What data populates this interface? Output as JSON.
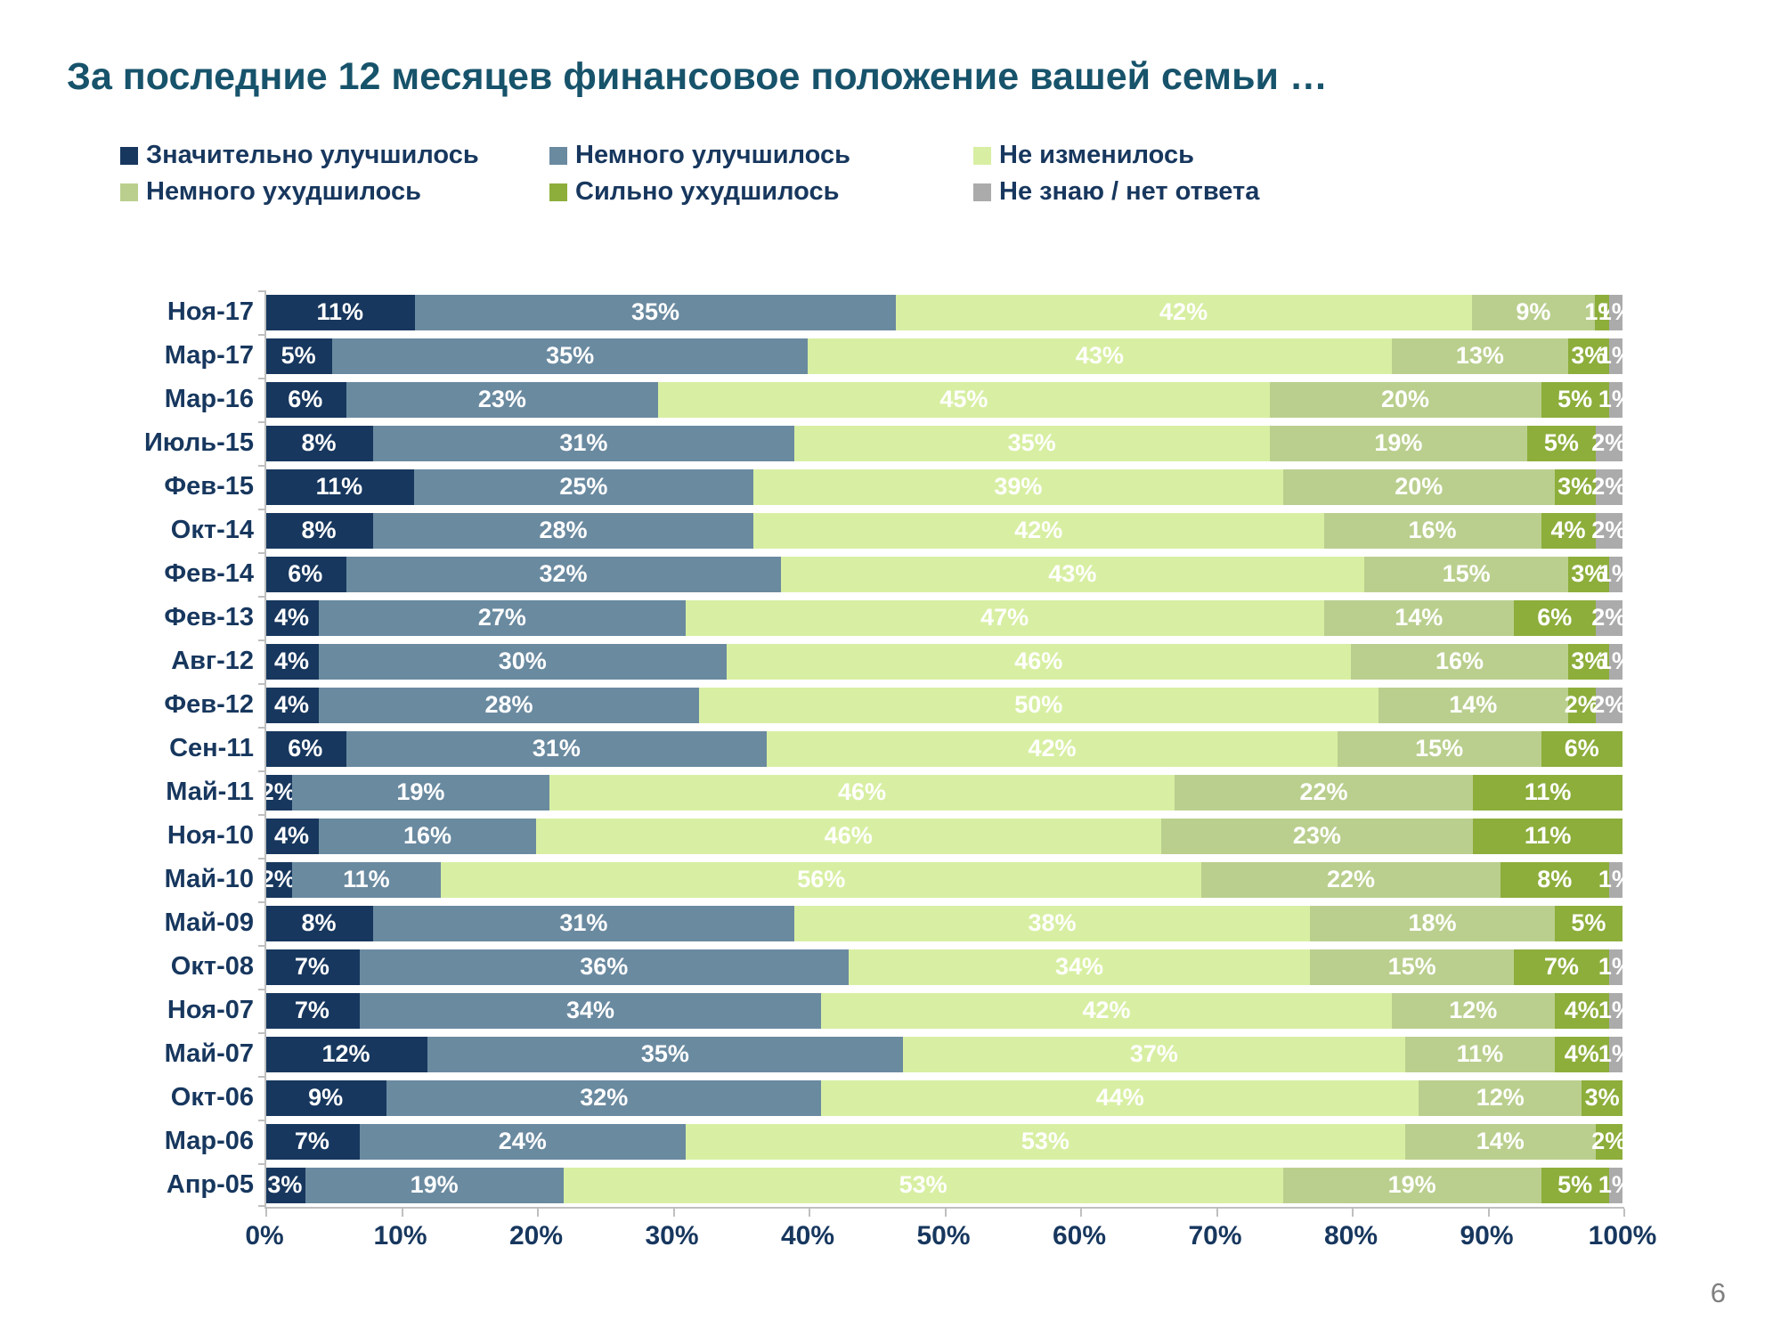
{
  "title": "За последние 12 месяцев финансовое положение вашей семьи …",
  "page_number": "6",
  "chart_data": {
    "type": "bar",
    "orientation": "horizontal",
    "stacked": true,
    "legend_position": "top",
    "grid": false,
    "xlim": [
      0,
      100
    ],
    "value_suffix": "%",
    "axis_color": "#BFBFBF",
    "text_color": "#17375E",
    "x_ticks": [
      "0%",
      "10%",
      "20%",
      "30%",
      "40%",
      "50%",
      "60%",
      "70%",
      "80%",
      "90%",
      "100%"
    ],
    "categories": [
      "Ноя-17",
      "Мар-17",
      "Мар-16",
      "Июль-15",
      "Фев-15",
      "Окт-14",
      "Фев-14",
      "Фев-13",
      "Авг-12",
      "Фев-12",
      "Сен-11",
      "Май-11",
      "Ноя-10",
      "Май-10",
      "Май-09",
      "Окт-08",
      "Ноя-07",
      "Май-07",
      "Окт-06",
      "Мар-06",
      "Апр-05"
    ],
    "series": [
      {
        "name": "Значительно улучшилось",
        "color": "#17375E",
        "values": [
          11,
          5,
          6,
          8,
          11,
          8,
          6,
          4,
          4,
          4,
          6,
          2,
          4,
          2,
          8,
          7,
          7,
          12,
          9,
          7,
          3
        ]
      },
      {
        "name": "Немного улучшилось",
        "color": "#6A8AA0",
        "values": [
          35,
          35,
          23,
          31,
          25,
          28,
          32,
          27,
          30,
          28,
          31,
          19,
          16,
          11,
          31,
          36,
          34,
          35,
          32,
          24,
          19
        ]
      },
      {
        "name": "Не изменилось",
        "color": "#D8EFA3",
        "values": [
          42,
          43,
          45,
          35,
          39,
          42,
          43,
          47,
          46,
          50,
          42,
          46,
          46,
          56,
          38,
          34,
          42,
          37,
          44,
          53,
          53
        ]
      },
      {
        "name": "Немного ухудшилось",
        "color": "#BACF8E",
        "values": [
          9,
          13,
          20,
          19,
          20,
          16,
          15,
          14,
          16,
          14,
          15,
          22,
          23,
          22,
          18,
          15,
          12,
          11,
          12,
          14,
          19
        ]
      },
      {
        "name": "Сильно ухудшилось",
        "color": "#8DAE3B",
        "values": [
          1,
          3,
          5,
          5,
          3,
          4,
          3,
          6,
          3,
          2,
          6,
          11,
          11,
          8,
          5,
          7,
          4,
          4,
          3,
          2,
          5
        ]
      },
      {
        "name": "Не знаю / нет ответа",
        "color": "#ABABAB",
        "values": [
          1,
          1,
          1,
          2,
          2,
          2,
          1,
          2,
          1,
          2,
          0,
          0,
          0,
          1,
          0,
          1,
          1,
          1,
          0,
          0,
          1
        ]
      }
    ]
  }
}
